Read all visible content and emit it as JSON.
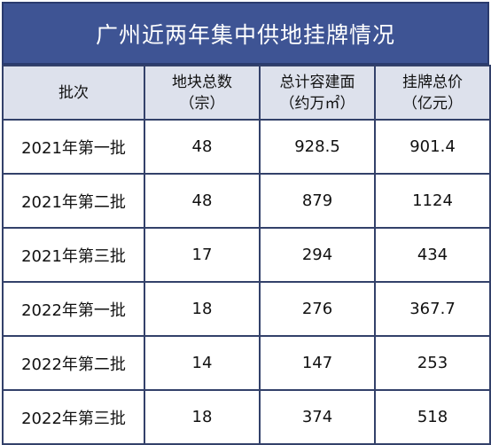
{
  "title": "广州近两年集中供地挂牌情况",
  "headers": [
    {
      "line1": "批次",
      "line2": ""
    },
    {
      "line1": "地块总数",
      "line2": "（宗）"
    },
    {
      "line1": "总计容建面",
      "line2": "（约万㎡）"
    },
    {
      "line1": "挂牌总价",
      "line2": "（亿元）"
    }
  ],
  "rows": [
    {
      "batch": "2021年第一批",
      "plots": "48",
      "area": "928.5",
      "price": "901.4"
    },
    {
      "batch": "2021年第二批",
      "plots": "48",
      "area": "879",
      "price": "1124"
    },
    {
      "batch": "2021年第三批",
      "plots": "17",
      "area": "294",
      "price": "434"
    },
    {
      "batch": "2022年第一批",
      "plots": "18",
      "area": "276",
      "price": "367.7"
    },
    {
      "batch": "2022年第二批",
      "plots": "14",
      "area": "147",
      "price": "253"
    },
    {
      "batch": "2022年第三批",
      "plots": "18",
      "area": "374",
      "price": "518"
    }
  ]
}
